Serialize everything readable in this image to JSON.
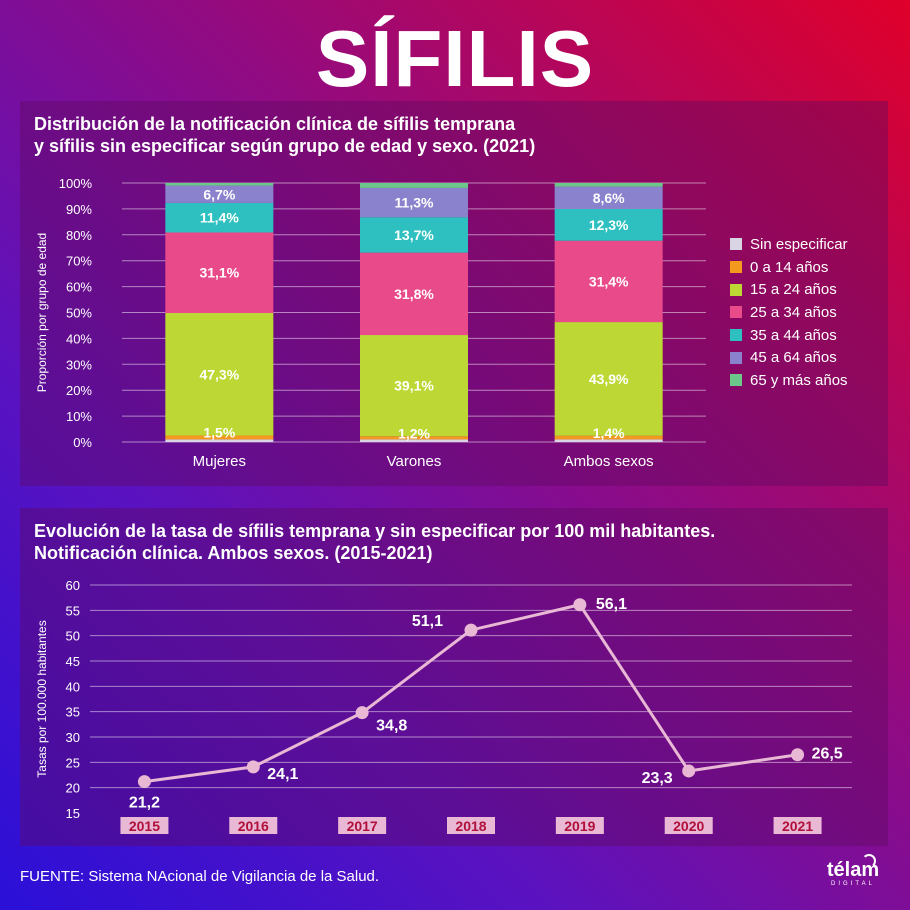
{
  "title": "SÍFILIS",
  "footer": {
    "source": "FUENTE: Sistema NAcional de Vigilancia de la Salud.",
    "logo": "télam",
    "logo_sub": "DIGITAL"
  },
  "chart_data": [
    {
      "type": "bar",
      "stacked": true,
      "title": [
        "Distribución de la notificación clínica de sífilis temprana",
        "y sífilis sin especificar según grupo de edad y sexo. (2021)"
      ],
      "ylabel": "Proporción por grupo de edad",
      "xlabel": "",
      "ylim": [
        0,
        100
      ],
      "yticks": [
        "0%",
        "10%",
        "20%",
        "30%",
        "40%",
        "50%",
        "60%",
        "70%",
        "80%",
        "90%",
        "100%"
      ],
      "categories": [
        "Mujeres",
        "Varones",
        "Ambos sexos"
      ],
      "legend_position": "right",
      "series": [
        {
          "name": "Sin especificar",
          "color": "#d8d4e4",
          "values": [
            1.0,
            1.0,
            1.0
          ]
        },
        {
          "name": "0 a 14 años",
          "color": "#f39a1e",
          "values": [
            1.5,
            1.2,
            1.4
          ]
        },
        {
          "name": "15 a 24 años",
          "color": "#bdd835",
          "values": [
            47.3,
            39.1,
            43.9
          ]
        },
        {
          "name": "25 a 34 años",
          "color": "#e94a8a",
          "values": [
            31.1,
            31.8,
            31.4
          ]
        },
        {
          "name": "35 a 44 años",
          "color": "#2ec0c0",
          "values": [
            11.4,
            13.7,
            12.3
          ]
        },
        {
          "name": "45 a 64 años",
          "color": "#8a82cc",
          "values": [
            6.7,
            11.3,
            8.6
          ]
        },
        {
          "name": "65 y más años",
          "color": "#6cc88a",
          "values": [
            1.0,
            1.9,
            1.4
          ]
        }
      ],
      "data_labels": [
        {
          "series": 1,
          "labels": [
            "1,5%",
            "1,2%",
            "1,4%"
          ]
        },
        {
          "series": 2,
          "labels": [
            "47,3%",
            "39,1%",
            "43,9%"
          ]
        },
        {
          "series": 3,
          "labels": [
            "31,1%",
            "31,8%",
            "31,4%"
          ]
        },
        {
          "series": 4,
          "labels": [
            "11,4%",
            "13,7%",
            "12,3%"
          ]
        },
        {
          "series": 5,
          "labels": [
            "6,7%",
            "11,3%",
            "8,6%"
          ]
        }
      ]
    },
    {
      "type": "line",
      "title": [
        "Evolución de la tasa de sífilis temprana y sin especificar por 100 mil habitantes.",
        "Notificación clínica. Ambos sexos. (2015-2021)"
      ],
      "ylabel": "Tasas por 100.000 habitantes",
      "xlabel": "",
      "ylim": [
        15,
        60
      ],
      "yticks": [
        15,
        20,
        25,
        30,
        35,
        40,
        45,
        50,
        55,
        60
      ],
      "x": [
        "2015",
        "2016",
        "2017",
        "2018",
        "2019",
        "2020",
        "2021"
      ],
      "values": [
        21.2,
        24.1,
        34.8,
        51.1,
        56.1,
        23.3,
        26.5
      ],
      "labels": [
        "21,2",
        "24,1",
        "34,8",
        "51,1",
        "56,1",
        "23,3",
        "26,5"
      ],
      "line_color": "#e8b8d4",
      "year_label_bg": "#e8b8d4",
      "year_label_color": "#b0103a"
    }
  ]
}
